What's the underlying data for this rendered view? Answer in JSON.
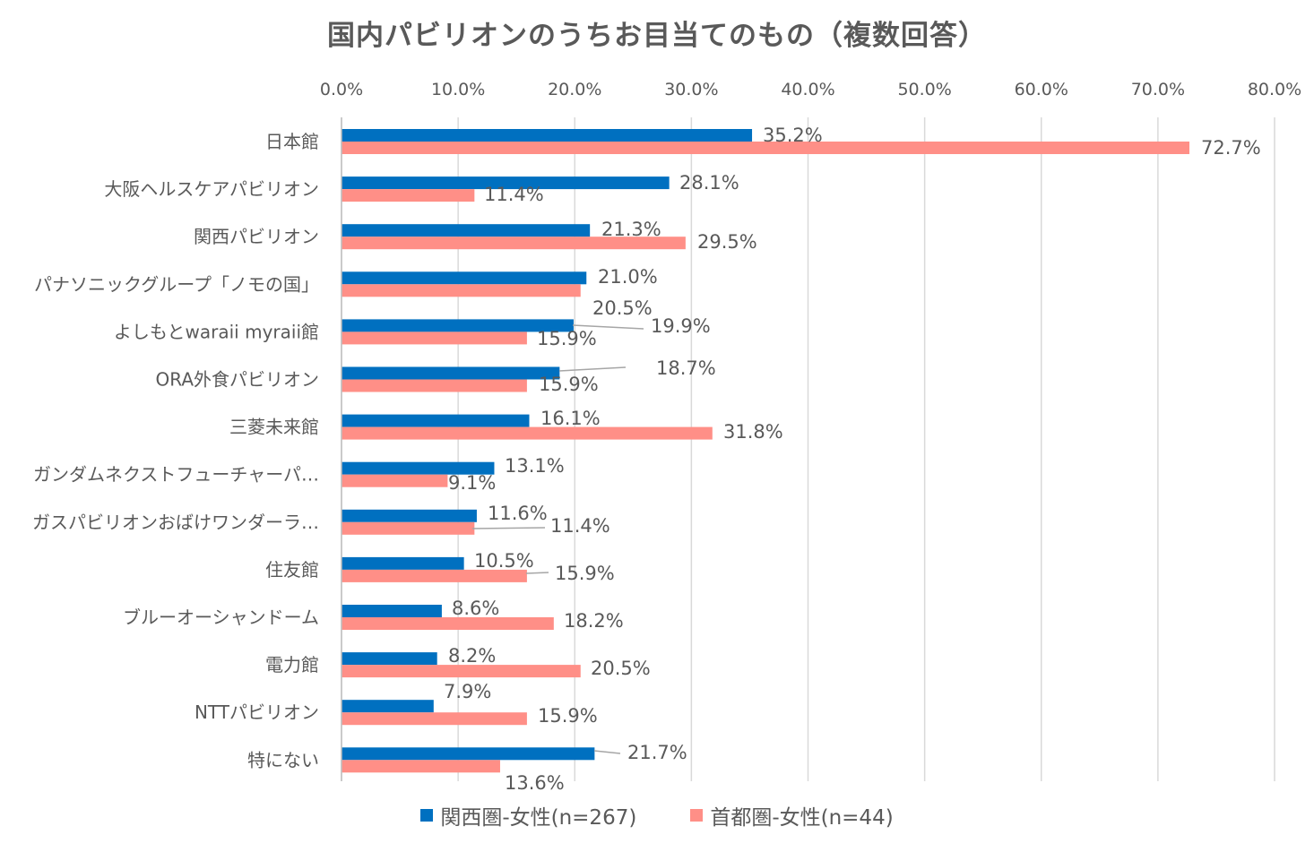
{
  "chart_data": {
    "type": "bar",
    "orientation": "horizontal",
    "title": "国内パビリオンのうちお目当てのもの（複数回答）",
    "xlim": [
      0,
      80
    ],
    "x_ticks": [
      "0.0%",
      "10.0%",
      "20.0%",
      "30.0%",
      "40.0%",
      "50.0%",
      "60.0%",
      "70.0%",
      "80.0%"
    ],
    "x_tick_values": [
      0,
      10,
      20,
      30,
      40,
      50,
      60,
      70,
      80
    ],
    "grid": true,
    "legend_position": "bottom",
    "categories": [
      "日本館",
      "大阪ヘルスケアパビリオン",
      "関西パビリオン",
      "パナソニックグループ「ノモの国」",
      "よしもとwaraii myraii館",
      "ORA外食パビリオン",
      "三菱未来館",
      "ガンダムネクストフューチャーパ…",
      "ガスパビリオンおばけワンダーラ…",
      "住友館",
      "ブルーオーシャンドーム",
      "電力館",
      "NTTパビリオン",
      "特にない"
    ],
    "series": [
      {
        "name": "関西圏-女性(n=267)",
        "color": "#0070c0",
        "values": [
          35.2,
          28.1,
          21.3,
          21.0,
          19.9,
          18.7,
          16.1,
          13.1,
          11.6,
          10.5,
          8.6,
          8.2,
          7.9,
          21.7
        ],
        "labels": [
          "35.2%",
          "28.1%",
          "21.3%",
          "21.0%",
          "19.9%",
          "18.7%",
          "16.1%",
          "13.1%",
          "11.6%",
          "10.5%",
          "8.6%",
          "8.2%",
          "7.9%",
          "21.7%"
        ]
      },
      {
        "name": "首都圏-女性(n=44)",
        "color": "#ff8f87",
        "values": [
          72.7,
          11.4,
          29.5,
          20.5,
          15.9,
          15.9,
          31.8,
          9.1,
          11.4,
          15.9,
          18.2,
          20.5,
          15.9,
          13.6
        ],
        "labels": [
          "72.7%",
          "11.4%",
          "29.5%",
          "20.5%",
          "15.9%",
          "15.9%",
          "31.8%",
          "9.1%",
          "11.4%",
          "15.9%",
          "18.2%",
          "20.5%",
          "15.9%",
          "13.6%"
        ]
      }
    ]
  }
}
